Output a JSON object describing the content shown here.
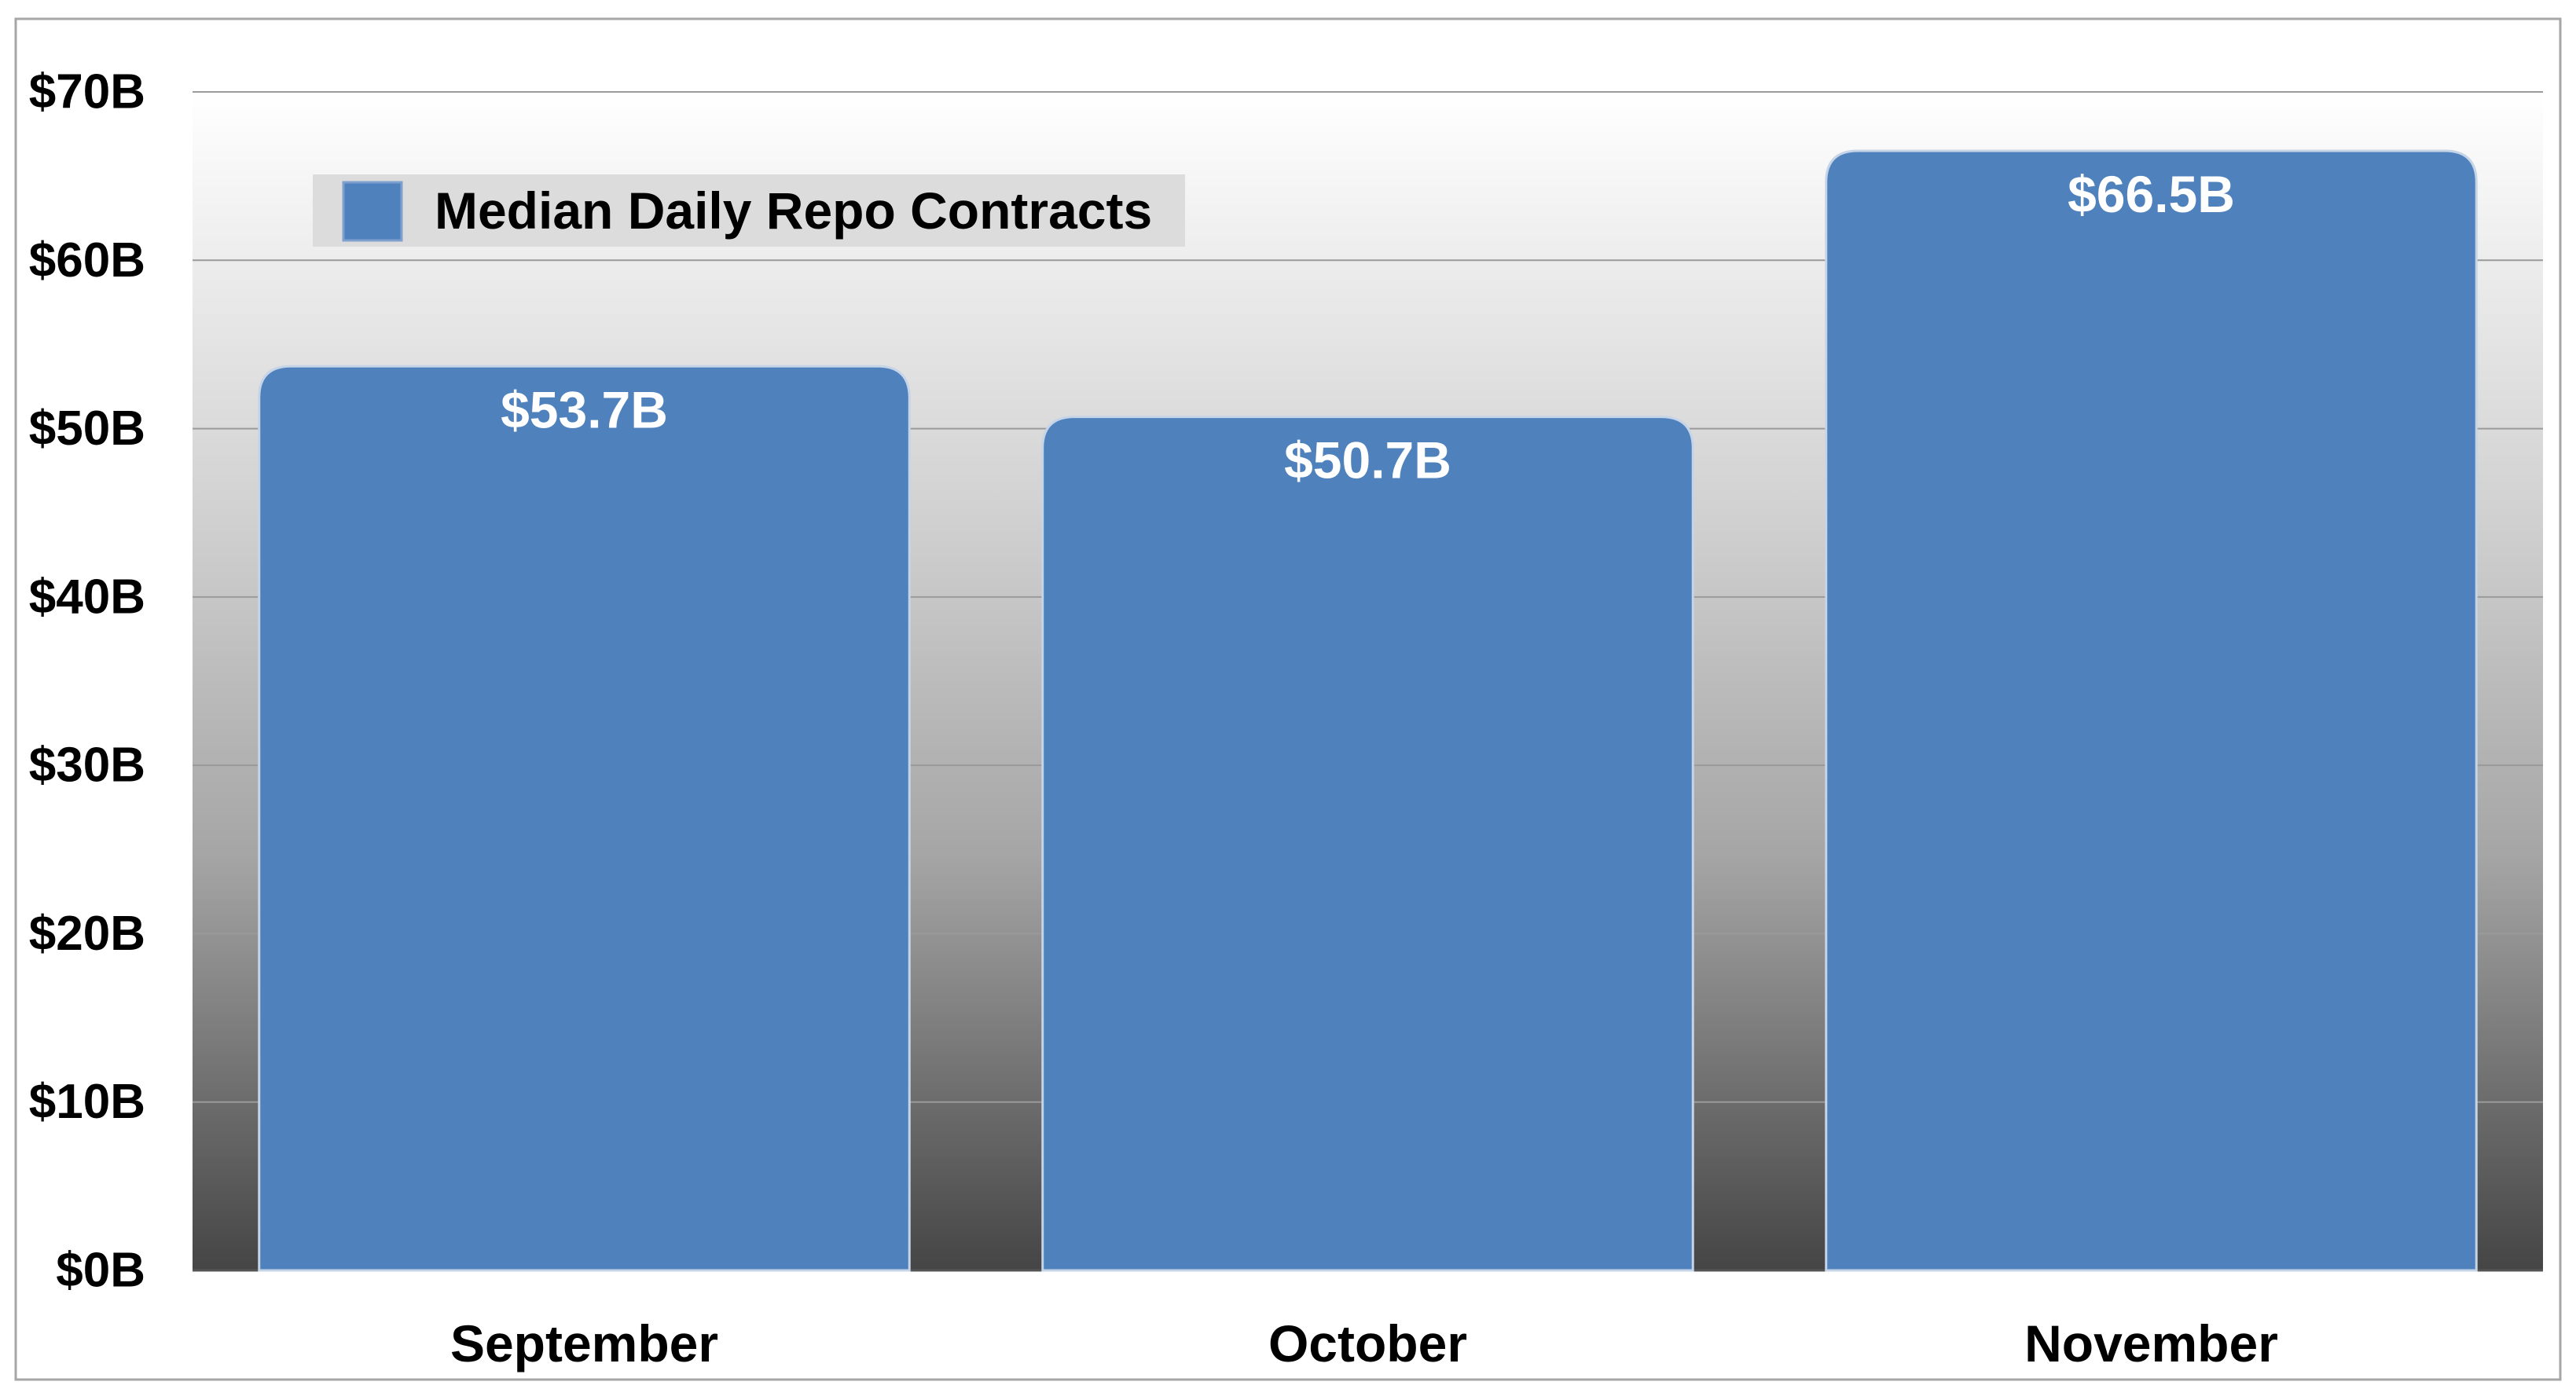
{
  "chart_data": {
    "type": "bar",
    "title": "",
    "xlabel": "",
    "ylabel": "",
    "categories": [
      "September",
      "October",
      "November"
    ],
    "series": [
      {
        "name": "Median Daily Repo Contracts",
        "values": [
          53.7,
          50.7,
          66.5
        ],
        "data_labels": [
          "$53.7B",
          "$50.7B",
          "$66.5B"
        ],
        "color": "#4f81bd"
      }
    ],
    "ylim": [
      0,
      70
    ],
    "yticks": [
      0,
      10,
      20,
      30,
      40,
      50,
      60,
      70
    ],
    "ytick_labels": [
      "$0B",
      "$10B",
      "$20B",
      "$30B",
      "$40B",
      "$50B",
      "$60B",
      "$70B"
    ],
    "grid": true,
    "legend_position": "top-left",
    "background": "gradient light gray to dark gray",
    "colors": {
      "bar": "#4f81bd",
      "bar_edge": "#c6d4e8",
      "plot_top": "#ffffff",
      "plot_bottom": "#454545",
      "gridline": "#9a9a9a",
      "legend_box": "#dcdcdc",
      "frame": "#a6a6a6"
    }
  }
}
